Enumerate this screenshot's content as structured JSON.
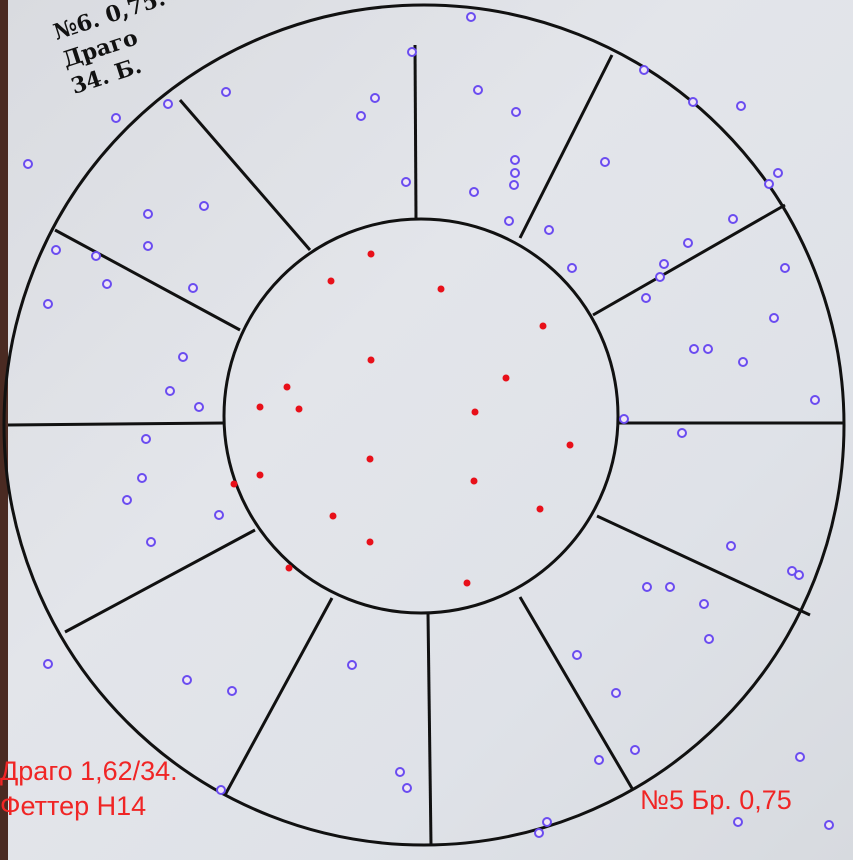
{
  "handwritten_note": {
    "line1": "№6. 0,75.",
    "line2": "Драго",
    "line3": "34. Б."
  },
  "annotation_left": {
    "line1": "Драго 1,62/34.",
    "line2": "Феттер Н14"
  },
  "annotation_right": "№5 Бр. 0,75",
  "colors": {
    "inner_hits": "#e8101a",
    "outer_hits": "#6a4cf0",
    "annotation": "#f02525",
    "lines": "#111111"
  }
}
